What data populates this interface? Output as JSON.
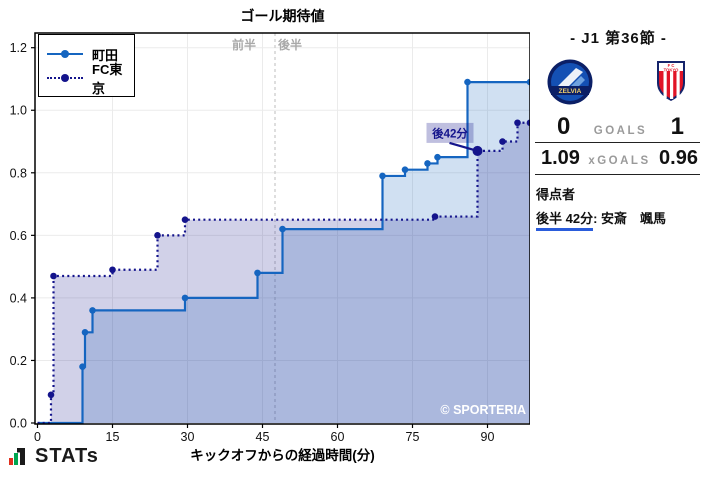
{
  "chart_data": {
    "type": "line",
    "title": "ゴール期待値",
    "xlabel": "キックオフからの経過時間(分)",
    "ylabel": "",
    "xlim": [
      -0.5,
      98.5
    ],
    "ylim": [
      0,
      1.247
    ],
    "xticks": [
      0,
      15,
      30,
      45,
      60,
      75,
      90
    ],
    "yticks": [
      "0.0",
      "0.2",
      "0.4",
      "0.6",
      "0.8",
      "1.0",
      "1.2"
    ],
    "grid": true,
    "legend_position": "upper-left",
    "halftime": {
      "x": 47.5,
      "first_label": "前半",
      "second_label": "後半"
    },
    "watermark": "© SPORTERIA",
    "series": [
      {
        "name": "町田",
        "type": "step",
        "style": "solid",
        "color": "#1565c0",
        "fill": "rgba(21,101,192,0.2)",
        "points": [
          [
            0,
            0
          ],
          [
            9,
            0.18
          ],
          [
            9.5,
            0.29
          ],
          [
            11,
            0.36
          ],
          [
            29.5,
            0.4
          ],
          [
            44,
            0.48
          ],
          [
            49,
            0.62
          ],
          [
            69,
            0.79
          ],
          [
            73.5,
            0.81
          ],
          [
            78,
            0.83
          ],
          [
            80,
            0.85
          ],
          [
            86,
            1.09
          ],
          [
            98.5,
            1.09
          ]
        ]
      },
      {
        "name": "FC東京",
        "type": "step",
        "style": "dotted",
        "color": "#14148c",
        "fill": "rgba(26,26,140,0.2)",
        "points": [
          [
            0,
            0
          ],
          [
            2.7,
            0.09
          ],
          [
            3.2,
            0.47
          ],
          [
            15,
            0.49
          ],
          [
            24,
            0.6
          ],
          [
            29.5,
            0.65
          ],
          [
            79.5,
            0.66
          ],
          [
            88,
            0.87
          ],
          [
            93,
            0.9
          ],
          [
            96,
            0.96
          ],
          [
            98.5,
            0.96
          ]
        ]
      }
    ],
    "annotation": {
      "label": "後42分",
      "x": 88,
      "y": 0.87
    }
  },
  "panel": {
    "title": "- J1 第36節 -",
    "home_team": "町田",
    "away_team": "FC東京",
    "home_logo_text": "ZELVIA",
    "away_logo_text_top": "F C",
    "away_logo_text_bottom": "TOKYO",
    "score": {
      "home": "0",
      "label": "GOALS",
      "away": "1"
    },
    "xgoals": {
      "home": "1.09",
      "label": "xGOALS",
      "away": "0.96"
    },
    "scorers_heading": "得点者",
    "scorer": {
      "time": "後半 42分",
      "separator": ": ",
      "name": "安斎　颯馬"
    }
  },
  "footer": {
    "brand": "STATs"
  }
}
